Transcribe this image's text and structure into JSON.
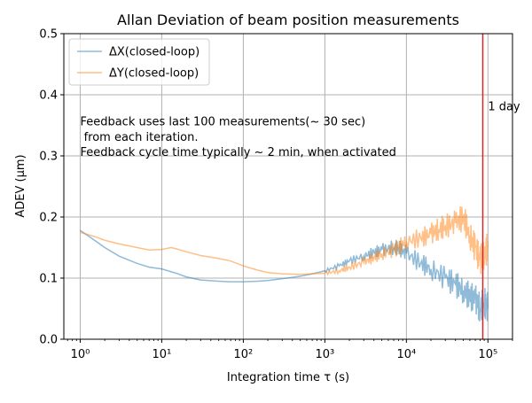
{
  "chart_data": {
    "type": "line",
    "title": "Allan Deviation of beam position measurements",
    "xlabel": "Integration time τ (s)",
    "ylabel": "ADEV (μm)",
    "xscale": "log",
    "xlim": [
      0.63,
      200000
    ],
    "ylim": [
      0,
      0.5
    ],
    "grid": true,
    "legend_position": "top-left",
    "x_ticks": [
      {
        "value": 1,
        "label": "10⁰"
      },
      {
        "value": 10,
        "label": "10¹"
      },
      {
        "value": 100,
        "label": "10²"
      },
      {
        "value": 1000,
        "label": "10³"
      },
      {
        "value": 10000,
        "label": "10⁴"
      },
      {
        "value": 100000,
        "label": "10⁵"
      }
    ],
    "y_ticks": [
      {
        "value": 0.0,
        "label": "0.0"
      },
      {
        "value": 0.1,
        "label": "0.1"
      },
      {
        "value": 0.2,
        "label": "0.2"
      },
      {
        "value": 0.3,
        "label": "0.3"
      },
      {
        "value": 0.4,
        "label": "0.4"
      },
      {
        "value": 0.5,
        "label": "0.5"
      }
    ],
    "series": [
      {
        "name": "ΔX(closed-loop)",
        "color": "#1f77b4",
        "x": [
          1,
          1.5,
          2,
          3,
          5,
          7,
          10,
          15,
          20,
          30,
          50,
          70,
          100,
          150,
          200,
          300,
          500,
          700,
          1000,
          1500,
          2000,
          3000,
          4000,
          5000,
          7000,
          8000,
          10000,
          15000,
          20000,
          30000,
          40000,
          50000,
          60000,
          70000,
          80000,
          90000,
          100000
        ],
        "y": [
          0.178,
          0.162,
          0.15,
          0.136,
          0.124,
          0.118,
          0.115,
          0.108,
          0.102,
          0.097,
          0.095,
          0.094,
          0.094,
          0.095,
          0.096,
          0.099,
          0.103,
          0.107,
          0.112,
          0.12,
          0.128,
          0.136,
          0.142,
          0.146,
          0.15,
          0.15,
          0.14,
          0.125,
          0.115,
          0.1,
          0.09,
          0.08,
          0.07,
          0.065,
          0.05,
          0.06,
          0.05
        ]
      },
      {
        "name": "ΔY(closed-loop)",
        "color": "#ff7f0e",
        "x": [
          1,
          1.5,
          2,
          3,
          5,
          7,
          10,
          13,
          15,
          20,
          30,
          50,
          70,
          100,
          150,
          200,
          300,
          500,
          700,
          1000,
          1500,
          2000,
          3000,
          4000,
          5000,
          7000,
          8000,
          10000,
          15000,
          20000,
          25000,
          30000,
          40000,
          50000,
          60000,
          70000,
          80000,
          90000,
          100000
        ],
        "y": [
          0.175,
          0.168,
          0.162,
          0.156,
          0.15,
          0.146,
          0.147,
          0.15,
          0.148,
          0.143,
          0.137,
          0.132,
          0.128,
          0.12,
          0.113,
          0.109,
          0.107,
          0.106,
          0.107,
          0.108,
          0.112,
          0.118,
          0.126,
          0.134,
          0.14,
          0.146,
          0.15,
          0.16,
          0.165,
          0.172,
          0.18,
          0.185,
          0.19,
          0.2,
          0.17,
          0.15,
          0.13,
          0.14,
          0.15
        ]
      }
    ],
    "vlines": [
      {
        "x": 86400,
        "color": "#d62728"
      }
    ],
    "annotations": [
      {
        "id": "feedback-line-1",
        "text": "Feedback uses last 100 measurements(~ 30 sec)",
        "x": 1,
        "y": 0.35
      },
      {
        "id": "feedback-line-2",
        "text": " from each iteration.",
        "x": 1,
        "y": 0.325
      },
      {
        "id": "feedback-line-3",
        "text": "Feedback cycle time typically ~ 2 min, when activated",
        "x": 1,
        "y": 0.3
      },
      {
        "id": "one-day-label",
        "text": "1 day",
        "x": 100000,
        "y": 0.375
      }
    ]
  }
}
